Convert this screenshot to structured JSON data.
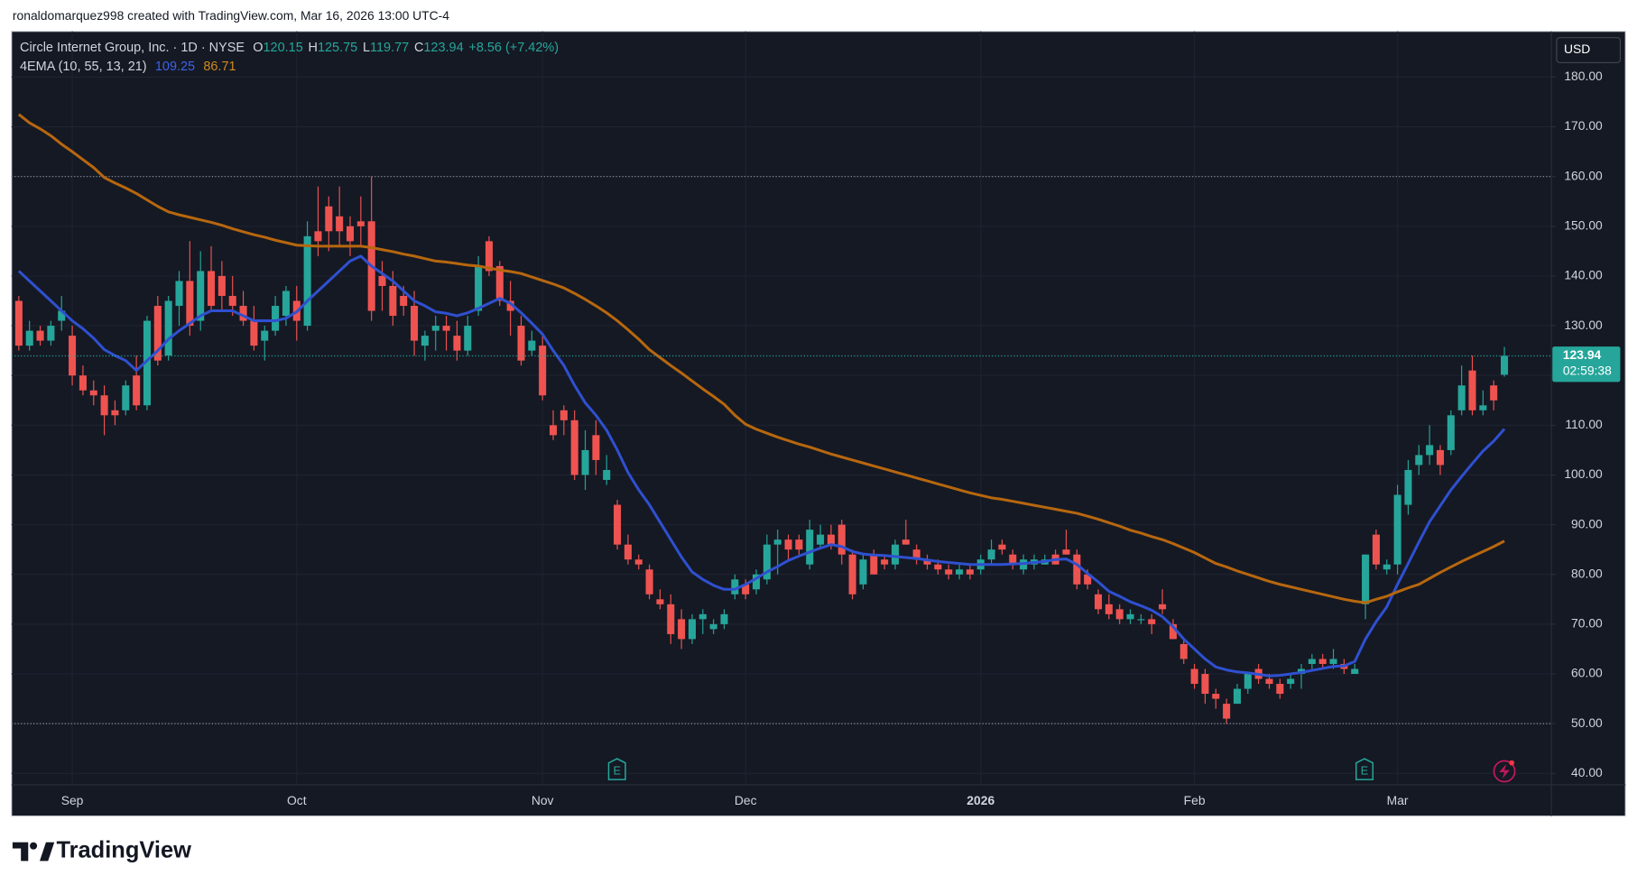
{
  "header": {
    "attribution": "ronaldomarquez998 created with TradingView.com, Mar 16, 2026 13:00 UTC-4"
  },
  "footer": {
    "brand": "TradingView"
  },
  "chart_data": {
    "type": "candlestick",
    "title": "Circle Internet Group, Inc. · 1D · NYSE",
    "ohlc_prefixes": [
      "O",
      "H",
      "L",
      "C"
    ],
    "change_label": "+8.56 (+7.42%)",
    "indicator_label": "4EMA (10, 55, 13, 21)",
    "currency": "USD",
    "countdown": "02:59:38",
    "event_markers": [
      "E",
      "E"
    ],
    "up_color": "#26a69a",
    "down_color": "#ef5350",
    "categories": [
      null,
      null,
      null,
      null,
      null,
      "Sep",
      null,
      null,
      null,
      null,
      null,
      null,
      null,
      null,
      null,
      null,
      null,
      null,
      null,
      null,
      null,
      null,
      null,
      null,
      null,
      null,
      "Oct",
      null,
      null,
      null,
      null,
      null,
      null,
      null,
      null,
      null,
      null,
      null,
      null,
      null,
      null,
      null,
      null,
      null,
      null,
      null,
      null,
      null,
      null,
      "Nov",
      null,
      null,
      null,
      null,
      null,
      null,
      null,
      null,
      null,
      null,
      null,
      null,
      null,
      null,
      null,
      null,
      null,
      null,
      "Dec",
      null,
      null,
      null,
      null,
      null,
      null,
      null,
      null,
      null,
      null,
      null,
      null,
      null,
      null,
      null,
      null,
      null,
      null,
      null,
      null,
      null,
      "2026",
      null,
      null,
      null,
      null,
      null,
      null,
      null,
      null,
      null,
      null,
      null,
      null,
      null,
      null,
      null,
      null,
      null,
      null,
      null,
      "Feb",
      null,
      null,
      null,
      null,
      null,
      null,
      null,
      null,
      null,
      null,
      null,
      null,
      null,
      null,
      null,
      null,
      null,
      null,
      "Mar",
      null,
      null,
      null,
      null,
      null,
      null,
      null,
      null,
      null,
      null
    ],
    "open": [
      135,
      126,
      129,
      127,
      131,
      128,
      120,
      117,
      116,
      113,
      113,
      120,
      114,
      134,
      124,
      134,
      139,
      131,
      141,
      140,
      136,
      134,
      131,
      127,
      129,
      132,
      135,
      130,
      149,
      154,
      152,
      150,
      151,
      151,
      140,
      138,
      136,
      134,
      126,
      129,
      130,
      128,
      125,
      133,
      147,
      142,
      135,
      130,
      125,
      126,
      110,
      113,
      111,
      100,
      108,
      99,
      94,
      86,
      83,
      81,
      75,
      74,
      71,
      67,
      71,
      69,
      70,
      76,
      78,
      77,
      79,
      86,
      87,
      87,
      82,
      86,
      88,
      90,
      84,
      78,
      84,
      83,
      82,
      87,
      85,
      83,
      82,
      81,
      80,
      81,
      81,
      83,
      86,
      84,
      81,
      82,
      82,
      84,
      85,
      84,
      80,
      76,
      74,
      73,
      71,
      71,
      71,
      74,
      70,
      66,
      61,
      60,
      56,
      54,
      54,
      57,
      61,
      59,
      58,
      58,
      60,
      62,
      63,
      62,
      62,
      60,
      74,
      88,
      81,
      82,
      94,
      102,
      104,
      105,
      105,
      113,
      121,
      113,
      118,
      120.15
    ],
    "high": [
      136,
      131,
      130,
      131,
      136,
      130,
      122,
      119,
      118,
      115,
      119,
      124,
      132,
      136,
      136,
      141,
      147,
      145,
      146,
      143,
      140,
      137,
      134,
      130,
      136,
      138,
      138,
      151,
      158,
      156,
      158,
      152,
      156,
      160,
      143,
      141,
      138,
      137,
      129,
      132,
      132,
      131,
      132,
      144,
      148,
      143,
      139,
      132,
      129,
      128,
      113,
      114,
      113,
      109,
      111,
      104,
      95,
      88,
      84,
      82,
      77,
      76,
      73,
      72,
      73,
      71,
      73,
      80,
      79,
      81,
      88,
      89,
      88,
      88,
      91,
      90,
      90,
      91,
      85,
      84,
      85,
      84,
      87,
      91,
      86,
      84,
      83,
      82,
      82,
      82,
      84,
      87,
      87,
      85,
      84,
      84,
      84,
      85,
      89,
      85,
      81,
      77,
      76,
      74,
      73,
      72,
      72,
      77,
      71,
      67,
      62,
      61,
      57,
      55,
      58,
      60,
      62,
      60,
      59,
      60,
      62,
      64,
      64,
      65,
      63,
      62,
      84,
      89,
      83,
      98,
      103,
      106,
      110,
      106,
      113,
      122,
      124,
      117,
      119,
      125.75
    ],
    "low": [
      125,
      125,
      126,
      126,
      129,
      118,
      116,
      114,
      108,
      110,
      112,
      113,
      113,
      122,
      123,
      130,
      128,
      129,
      133,
      133,
      132,
      130,
      125,
      123,
      128,
      130,
      127,
      129,
      144,
      145,
      146,
      144,
      146,
      131,
      133,
      130,
      132,
      124,
      123,
      125,
      125,
      123,
      124,
      132,
      140,
      134,
      128,
      122,
      124,
      115,
      107,
      108,
      99,
      97,
      100,
      98,
      85,
      82,
      81,
      75,
      73,
      66,
      65,
      66,
      68,
      68,
      69,
      75,
      75,
      76,
      78,
      80,
      83,
      84,
      81,
      85,
      85,
      82,
      75,
      77,
      80,
      81,
      81,
      86,
      82,
      81,
      80,
      79,
      79,
      79,
      80,
      82,
      84,
      81,
      80,
      81,
      82,
      82,
      84,
      77,
      77,
      72,
      71,
      70,
      70,
      70,
      68,
      72,
      67,
      62,
      57,
      54,
      53,
      50,
      54,
      56,
      58,
      57,
      55,
      57,
      57,
      61,
      61,
      61,
      60,
      60,
      71,
      81,
      80,
      80,
      92,
      100,
      102,
      100,
      104,
      112,
      112,
      112,
      113,
      119.77
    ],
    "close": [
      126,
      129,
      127,
      130,
      133,
      120,
      117,
      116,
      112,
      112,
      118,
      114,
      131,
      123,
      135,
      139,
      130,
      141,
      134,
      136,
      134,
      131,
      126,
      129,
      134,
      137,
      131,
      148,
      147,
      149,
      149,
      147,
      150,
      133,
      138,
      132,
      134,
      127,
      128,
      130,
      129,
      125,
      130,
      142,
      141,
      135,
      133,
      123,
      127,
      116,
      108,
      111,
      100,
      105,
      103,
      101,
      86,
      83,
      82,
      76,
      74,
      68,
      67,
      71,
      72,
      70,
      72,
      79,
      76,
      80,
      86,
      87,
      85,
      85,
      89,
      88,
      86,
      84,
      76,
      83,
      80,
      82,
      86,
      86,
      83,
      82,
      81,
      80,
      81,
      80,
      83,
      85,
      85,
      82,
      83,
      83,
      83,
      82,
      84,
      78,
      78,
      73,
      72,
      71,
      72,
      71,
      70,
      73,
      67,
      63,
      58,
      56,
      55,
      51,
      57,
      60,
      59,
      58,
      56,
      59,
      61,
      63,
      62,
      63,
      61,
      61,
      84,
      82,
      82,
      96,
      101,
      104,
      106,
      102,
      112,
      118,
      113,
      114,
      115,
      123.94
    ],
    "series": [
      {
        "color": "#2f50d0",
        "values": [
          141,
          139,
          137,
          135,
          133,
          131,
          129.4,
          127.5,
          125.2,
          124,
          123,
          121,
          123,
          125,
          127.3,
          129,
          130.5,
          132,
          133,
          133,
          133,
          132,
          131,
          131,
          131,
          131.5,
          132.8,
          135,
          137,
          139,
          141,
          143,
          144,
          142,
          140.5,
          139,
          137,
          135,
          134,
          132.8,
          132.5,
          132,
          132.6,
          133.5,
          134.5,
          135.5,
          134.5,
          132.6,
          130.5,
          128.3,
          125,
          122,
          118,
          114.5,
          112,
          109,
          105,
          100.5,
          97,
          94,
          90.5,
          87,
          83.5,
          80.5,
          79,
          77.8,
          77,
          77,
          78,
          79.2,
          80.5,
          81.6,
          82.8,
          83.7,
          84.5,
          85.3,
          86,
          85.6,
          84.6,
          84.1,
          83.9,
          83.8,
          83.6,
          83.4,
          83.2,
          82.9,
          82.6,
          82.4,
          82.2,
          82,
          82,
          82,
          82,
          82.1,
          82.2,
          82.4,
          82.6,
          83,
          83.1,
          82,
          80.2,
          78.5,
          76.6,
          75.6,
          74.5,
          73.7,
          72.8,
          71.5,
          69.5,
          67,
          65,
          63,
          61.4,
          60.8,
          60.4,
          60.2,
          59.9,
          59.6,
          59.7,
          60,
          60.3,
          60.7,
          61.1,
          61.5,
          61.6,
          62.5,
          67,
          70.5,
          73.5,
          78,
          82.2,
          86.5,
          90.6,
          93.8,
          97,
          99.7,
          102.3,
          104.8,
          106.8,
          109.25
        ]
      },
      {
        "color": "#b7670e",
        "values": [
          172.5,
          170.8,
          169.6,
          168.2,
          166.5,
          165,
          163.4,
          161.8,
          159.8,
          158.7,
          157.7,
          156.6,
          155.3,
          154,
          152.9,
          152.3,
          151.8,
          151.3,
          150.8,
          150.2,
          149.5,
          148.9,
          148.3,
          147.8,
          147.2,
          146.7,
          146.2,
          146.1,
          146,
          146,
          146,
          146,
          146,
          145.7,
          145.3,
          144.9,
          144.4,
          144,
          143.5,
          143,
          142.8,
          142.5,
          142.2,
          142,
          141.6,
          141.2,
          140.9,
          140.5,
          139.8,
          139.1,
          138.4,
          137.6,
          136.5,
          135.3,
          134,
          132.6,
          131,
          129.2,
          127.3,
          125.2,
          123.6,
          122,
          120.5,
          118.9,
          117.3,
          115.8,
          114.2,
          112,
          110.2,
          109.2,
          108.4,
          107.6,
          106.9,
          106.2,
          105.6,
          104.9,
          104.2,
          103.6,
          103,
          102.4,
          101.8,
          101.2,
          100.6,
          100,
          99.4,
          98.8,
          98.2,
          97.6,
          97,
          96.4,
          95.9,
          95.4,
          95.1,
          94.7,
          94.3,
          93.9,
          93.5,
          93.1,
          92.7,
          92.3,
          91.7,
          91.1,
          90.4,
          89.7,
          88.9,
          88.3,
          87.6,
          87,
          86.2,
          85.3,
          84.4,
          83.3,
          82.2,
          81.5,
          80.7,
          80,
          79.3,
          78.6,
          78,
          77.5,
          77,
          76.5,
          76,
          75.5,
          75,
          74.6,
          74.3,
          75,
          75.6,
          76.5,
          77.3,
          78,
          79.2,
          80.4,
          81.5,
          82.6,
          83.6,
          84.6,
          85.6,
          86.71
        ]
      }
    ],
    "ylim": [
      37.7,
      189.2
    ],
    "yticks": [
      {
        "value": 40,
        "label": "40.00"
      },
      {
        "value": 50,
        "label": "50.00"
      },
      {
        "value": 60,
        "label": "60.00"
      },
      {
        "value": 70,
        "label": "70.00"
      },
      {
        "value": 80,
        "label": "80.00"
      },
      {
        "value": 90,
        "label": "90.00"
      },
      {
        "value": 100,
        "label": "100.00"
      },
      {
        "value": 110,
        "label": "110.00"
      },
      {
        "value": 120,
        "label": "120.00"
      },
      {
        "value": 130,
        "label": "130.00"
      },
      {
        "value": 140,
        "label": "140.00"
      },
      {
        "value": 150,
        "label": "150.00"
      },
      {
        "value": 160,
        "label": "160.00"
      },
      {
        "value": 170,
        "label": "170.00"
      },
      {
        "value": 180,
        "label": "180.00"
      }
    ],
    "grid": true,
    "horizontal_lines": [
      160,
      50
    ]
  }
}
